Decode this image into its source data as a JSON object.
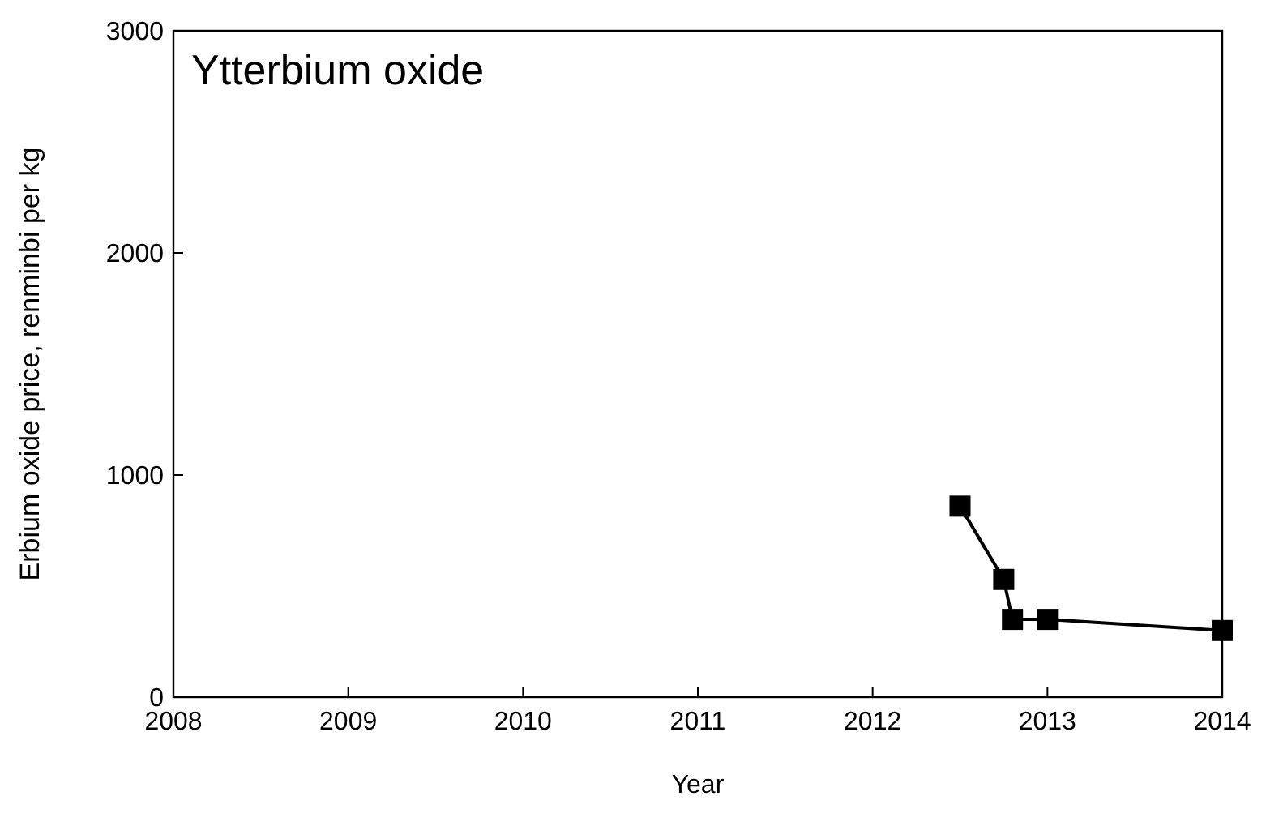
{
  "chart_data": {
    "type": "line",
    "title": "Ytterbium oxide",
    "xlabel": "Year",
    "ylabel": "Erbium oxide price, renminbi per kg",
    "x": [
      2012.5,
      2012.75,
      2012.8,
      2013,
      2014
    ],
    "series": [
      {
        "color": "#000000",
        "values": [
          860,
          530,
          350,
          350,
          300
        ]
      }
    ],
    "xlim": [
      2008,
      2014
    ],
    "ylim": [
      0,
      3000
    ],
    "xticks": [
      2008,
      2009,
      2010,
      2011,
      2012,
      2013,
      2014
    ],
    "yticks": [
      0,
      1000,
      2000,
      3000
    ],
    "marker": "square",
    "line_style": "solid",
    "grid": false
  }
}
